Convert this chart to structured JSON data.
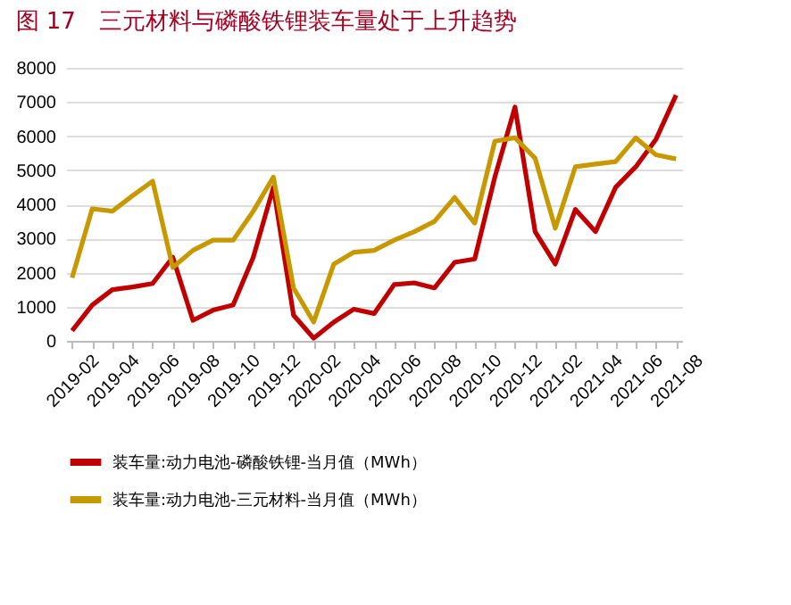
{
  "chart_data": {
    "type": "line",
    "title": "图 17　三元材料与磷酸铁锂装车量处于上升趋势",
    "categories": [
      "2019-02",
      null,
      "2019-04",
      null,
      "2019-06",
      null,
      "2019-08",
      null,
      "2019-10",
      null,
      "2019-12",
      null,
      "2020-02",
      null,
      "2020-04",
      null,
      "2020-06",
      null,
      "2020-08",
      null,
      "2020-10",
      null,
      "2020-12",
      null,
      "2021-02",
      null,
      "2021-04",
      null,
      "2021-06",
      null,
      "2021-08"
    ],
    "series": [
      {
        "name": "装车量:动力电池-磷酸铁锂-当月值（MWh）",
        "color": "#c00000",
        "values": [
          300,
          1050,
          1500,
          1580,
          1680,
          2450,
          600,
          900,
          1050,
          2450,
          4500,
          750,
          80,
          550,
          930,
          800,
          1650,
          1700,
          1550,
          2300,
          2400,
          4800,
          6850,
          3200,
          2250,
          3850,
          3200,
          4500,
          5100,
          5900,
          7200
        ]
      },
      {
        "name": "装车量:动力电池-三元材料-当月值（MWh）",
        "color": "#c89800",
        "values": [
          1850,
          3870,
          3800,
          4250,
          4680,
          2150,
          2650,
          2950,
          2950,
          3800,
          4800,
          1550,
          550,
          2250,
          2600,
          2650,
          2950,
          3200,
          3500,
          4200,
          3450,
          5850,
          5950,
          5350,
          3300,
          5100,
          5180,
          5250,
          5950,
          5450,
          5330
        ]
      }
    ],
    "ylim": [
      0,
      8000
    ],
    "yticks": [
      0,
      1000,
      2000,
      3000,
      4000,
      5000,
      6000,
      7000,
      8000
    ],
    "grid": "y",
    "legend": "bottom",
    "marker": "none",
    "line_style": "solid"
  }
}
